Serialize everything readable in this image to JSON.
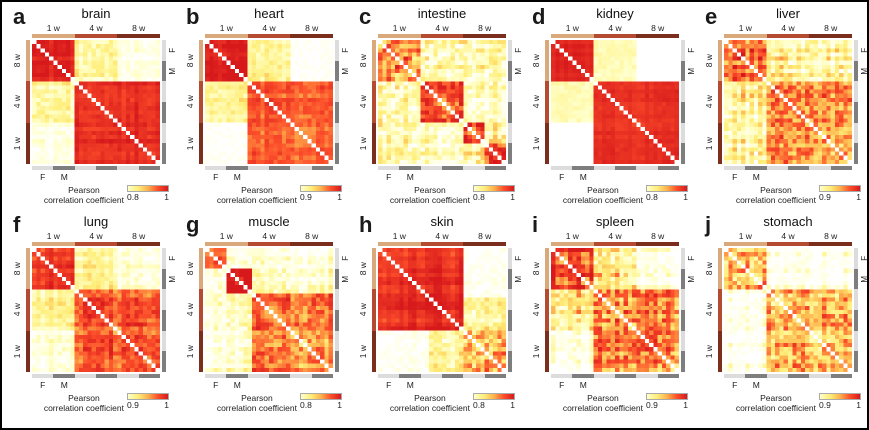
{
  "figure": {
    "background": "#ffffff",
    "border_color": "#000000"
  },
  "colors": {
    "age_1w": "#d9a87b",
    "age_4w": "#b44a2f",
    "age_8w": "#7c2e1d",
    "sex_F": "#dcdcdc",
    "sex_M": "#7e7e7e",
    "heat_stops": [
      "#ffffff",
      "#ffffc8",
      "#ffee7a",
      "#feb24c",
      "#fc4e2a",
      "#d7191c"
    ],
    "diagonal": "#ffffff"
  },
  "axis": {
    "top_labels": [
      "1 w",
      "4 w",
      "8 w"
    ],
    "left_labels": [
      "8 w",
      "4 w",
      "1 w"
    ],
    "sex_labels": [
      "F",
      "M"
    ],
    "colorbar_label_line1": "Pearson",
    "colorbar_label_line2": "correlation coefficient",
    "colorbar_max": "1"
  },
  "chart_data": {
    "type": "heatmap",
    "description": "Sample-sample Pearson correlation heatmaps per organ; 30 samples = 3 ages (1w/4w/8w) x 2 sexes (F/M) x 5 replicates; white diagonal; block structure by age group.",
    "matrix_size": 30,
    "age_group_boundaries": [
      10,
      20,
      30
    ],
    "sex_segment_count": 6,
    "panels": [
      {
        "letter": "a",
        "title": "brain",
        "colorbar_min": "0.8",
        "seed": 1,
        "streak": 0.05,
        "regions": [
          {
            "r": [
              0,
              30
            ],
            "c": [
              0,
              30
            ],
            "v": 0.0,
            "j": 0.04
          },
          {
            "r": [
              0,
              10
            ],
            "c": [
              10,
              20
            ],
            "v": 0.3,
            "j": 0.2
          },
          {
            "r": [
              0,
              10
            ],
            "c": [
              20,
              30
            ],
            "v": 0.1,
            "j": 0.12
          },
          {
            "r": [
              0,
              10
            ],
            "c": [
              0,
              10
            ],
            "v": 0.95,
            "j": 0.05
          },
          {
            "r": [
              10,
              30
            ],
            "c": [
              10,
              30
            ],
            "v": 0.93,
            "j": 0.06
          }
        ]
      },
      {
        "letter": "b",
        "title": "heart",
        "colorbar_min": "0.9",
        "seed": 2,
        "streak": 0.05,
        "regions": [
          {
            "r": [
              0,
              30
            ],
            "c": [
              0,
              30
            ],
            "v": 0.02,
            "j": 0.04
          },
          {
            "r": [
              0,
              10
            ],
            "c": [
              10,
              20
            ],
            "v": 0.32,
            "j": 0.16
          },
          {
            "r": [
              0,
              10
            ],
            "c": [
              20,
              30
            ],
            "v": 0.03,
            "j": 0.05
          },
          {
            "r": [
              0,
              10
            ],
            "c": [
              0,
              10
            ],
            "v": 0.96,
            "j": 0.04
          },
          {
            "r": [
              10,
              30
            ],
            "c": [
              10,
              30
            ],
            "v": 0.78,
            "j": 0.1
          }
        ]
      },
      {
        "letter": "c",
        "title": "intestine",
        "colorbar_min": "0.8",
        "seed": 3,
        "streak": 0.1,
        "regions": [
          {
            "r": [
              0,
              30
            ],
            "c": [
              0,
              30
            ],
            "v": 0.3,
            "j": 0.32
          },
          {
            "r": [
              0,
              10
            ],
            "c": [
              10,
              30
            ],
            "v": 0.25,
            "j": 0.3
          },
          {
            "r": [
              0,
              10
            ],
            "c": [
              0,
              10
            ],
            "v": 0.65,
            "j": 0.38
          },
          {
            "r": [
              10,
              20
            ],
            "c": [
              10,
              20
            ],
            "v": 0.8,
            "j": 0.26
          },
          {
            "r": [
              10,
              20
            ],
            "c": [
              20,
              30
            ],
            "v": 0.18,
            "j": 0.22
          },
          {
            "r": [
              20,
              25
            ],
            "c": [
              20,
              25
            ],
            "v": 0.85,
            "j": 0.2
          },
          {
            "r": [
              25,
              30
            ],
            "c": [
              25,
              30
            ],
            "v": 0.85,
            "j": 0.2
          },
          {
            "r": [
              20,
              25
            ],
            "c": [
              25,
              30
            ],
            "v": 0.35,
            "j": 0.3
          }
        ]
      },
      {
        "letter": "d",
        "title": "kidney",
        "colorbar_min": "0.8",
        "seed": 4,
        "streak": 0.03,
        "regions": [
          {
            "r": [
              0,
              30
            ],
            "c": [
              0,
              30
            ],
            "v": 0.01,
            "j": 0.02
          },
          {
            "r": [
              0,
              10
            ],
            "c": [
              10,
              20
            ],
            "v": 0.25,
            "j": 0.1
          },
          {
            "r": [
              0,
              10
            ],
            "c": [
              0,
              10
            ],
            "v": 0.97,
            "j": 0.02
          },
          {
            "r": [
              10,
              30
            ],
            "c": [
              10,
              30
            ],
            "v": 0.9,
            "j": 0.04
          }
        ]
      },
      {
        "letter": "e",
        "title": "liver",
        "colorbar_min": "0.9",
        "seed": 5,
        "streak": 0.12,
        "regions": [
          {
            "r": [
              0,
              30
            ],
            "c": [
              0,
              30
            ],
            "v": 0.12,
            "j": 0.2
          },
          {
            "r": [
              0,
              10
            ],
            "c": [
              10,
              30
            ],
            "v": 0.3,
            "j": 0.3
          },
          {
            "r": [
              0,
              10
            ],
            "c": [
              0,
              10
            ],
            "v": 0.8,
            "j": 0.26
          },
          {
            "r": [
              10,
              30
            ],
            "c": [
              10,
              30
            ],
            "v": 0.62,
            "j": 0.3
          }
        ]
      },
      {
        "letter": "f",
        "title": "lung",
        "colorbar_min": "0.9",
        "seed": 6,
        "streak": 0.08,
        "regions": [
          {
            "r": [
              0,
              30
            ],
            "c": [
              0,
              30
            ],
            "v": 0.05,
            "j": 0.08
          },
          {
            "r": [
              0,
              10
            ],
            "c": [
              10,
              20
            ],
            "v": 0.35,
            "j": 0.16
          },
          {
            "r": [
              0,
              10
            ],
            "c": [
              20,
              30
            ],
            "v": 0.15,
            "j": 0.16
          },
          {
            "r": [
              0,
              10
            ],
            "c": [
              0,
              10
            ],
            "v": 0.93,
            "j": 0.07
          },
          {
            "r": [
              10,
              30
            ],
            "c": [
              10,
              30
            ],
            "v": 0.8,
            "j": 0.15
          }
        ]
      },
      {
        "letter": "g",
        "title": "muscle",
        "colorbar_min": "0.8",
        "seed": 7,
        "streak": 0.12,
        "regions": [
          {
            "r": [
              0,
              30
            ],
            "c": [
              0,
              30
            ],
            "v": 0.1,
            "j": 0.15
          },
          {
            "r": [
              0,
              11
            ],
            "c": [
              11,
              30
            ],
            "v": 0.15,
            "j": 0.16
          },
          {
            "r": [
              0,
              5
            ],
            "c": [
              0,
              5
            ],
            "v": 0.9,
            "j": 0.12
          },
          {
            "r": [
              0,
              5
            ],
            "c": [
              5,
              11
            ],
            "v": 0.1,
            "j": 0.1
          },
          {
            "r": [
              5,
              11
            ],
            "c": [
              5,
              11
            ],
            "v": 0.93,
            "j": 0.08
          },
          {
            "r": [
              11,
              30
            ],
            "c": [
              11,
              30
            ],
            "v": 0.72,
            "j": 0.24
          }
        ]
      },
      {
        "letter": "h",
        "title": "skin",
        "colorbar_min": "0.8",
        "seed": 8,
        "streak": 0.08,
        "regions": [
          {
            "r": [
              0,
              30
            ],
            "c": [
              0,
              30
            ],
            "v": 0.06,
            "j": 0.1
          },
          {
            "r": [
              0,
              12
            ],
            "c": [
              20,
              30
            ],
            "v": 0.06,
            "j": 0.08
          },
          {
            "r": [
              12,
              20
            ],
            "c": [
              20,
              30
            ],
            "v": 0.3,
            "j": 0.22
          },
          {
            "r": [
              0,
              20
            ],
            "c": [
              0,
              20
            ],
            "v": 0.94,
            "j": 0.06
          },
          {
            "r": [
              20,
              30
            ],
            "c": [
              20,
              30
            ],
            "v": 0.55,
            "j": 0.32
          }
        ]
      },
      {
        "letter": "i",
        "title": "spleen",
        "colorbar_min": "0.9",
        "seed": 9,
        "streak": 0.12,
        "regions": [
          {
            "r": [
              0,
              30
            ],
            "c": [
              0,
              30
            ],
            "v": 0.05,
            "j": 0.08
          },
          {
            "r": [
              0,
              10
            ],
            "c": [
              10,
              20
            ],
            "v": 0.4,
            "j": 0.3
          },
          {
            "r": [
              0,
              10
            ],
            "c": [
              20,
              30
            ],
            "v": 0.07,
            "j": 0.1
          },
          {
            "r": [
              0,
              10
            ],
            "c": [
              0,
              10
            ],
            "v": 0.85,
            "j": 0.2
          },
          {
            "r": [
              10,
              30
            ],
            "c": [
              10,
              30
            ],
            "v": 0.68,
            "j": 0.28
          }
        ]
      },
      {
        "letter": "j",
        "title": "stomach",
        "colorbar_min": "0.9",
        "seed": 10,
        "streak": 0.12,
        "regions": [
          {
            "r": [
              0,
              30
            ],
            "c": [
              0,
              30
            ],
            "v": 0.03,
            "j": 0.05
          },
          {
            "r": [
              0,
              10
            ],
            "c": [
              10,
              30
            ],
            "v": 0.08,
            "j": 0.1
          },
          {
            "r": [
              0,
              10
            ],
            "c": [
              0,
              10
            ],
            "v": 0.6,
            "j": 0.34
          },
          {
            "r": [
              10,
              30
            ],
            "c": [
              10,
              30
            ],
            "v": 0.58,
            "j": 0.32
          }
        ]
      }
    ]
  }
}
